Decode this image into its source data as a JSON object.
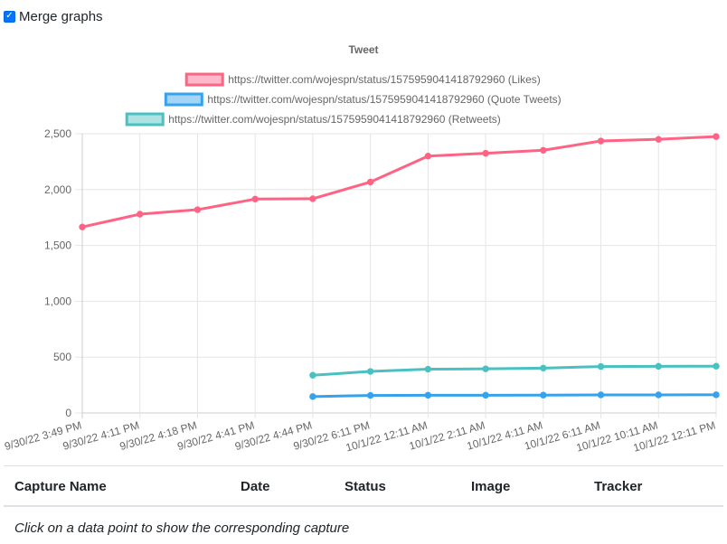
{
  "merge": {
    "label": "Merge graphs",
    "checked": true
  },
  "colors": {
    "likes": "#ff6384",
    "quote": "#36a2eb",
    "retweets": "#4bc0c0"
  },
  "table": {
    "headers": [
      "Capture Name",
      "Date",
      "Status",
      "Image",
      "Tracker"
    ],
    "hint": "Click on a data point to show the corresponding capture"
  },
  "chart_data": {
    "type": "line",
    "title": "Tweet",
    "xlabel": "",
    "ylabel": "",
    "ylim": [
      0,
      2500
    ],
    "yticks": [
      0,
      500,
      1000,
      1500,
      2000,
      2500
    ],
    "grid": true,
    "legend": "top",
    "categories": [
      "9/30/22 3:49 PM",
      "9/30/22 4:11 PM",
      "9/30/22 4:18 PM",
      "9/30/22 4:41 PM",
      "9/30/22 4:44 PM",
      "9/30/22 6:11 PM",
      "10/1/22 12:11 AM",
      "10/1/22 2:11 AM",
      "10/1/22 4:11 AM",
      "10/1/22 6:11 AM",
      "10/1/22 10:11 AM",
      "10/1/22 12:11 PM"
    ],
    "series": [
      {
        "name": "https://twitter.com/wojespn/status/1575959041418792960 (Likes)",
        "color": "#ff6384",
        "values": [
          1665,
          1780,
          1820,
          1915,
          1918,
          2068,
          2300,
          2325,
          2352,
          2435,
          2450,
          2475
        ]
      },
      {
        "name": "https://twitter.com/wojespn/status/1575959041418792960 (Quote Tweets)",
        "color": "#36a2eb",
        "values": [
          null,
          null,
          null,
          null,
          147,
          157,
          159,
          159,
          160,
          162,
          162,
          163
        ]
      },
      {
        "name": "https://twitter.com/wojespn/status/1575959041418792960 (Retweets)",
        "color": "#4bc0c0",
        "values": [
          null,
          null,
          null,
          null,
          338,
          372,
          392,
          395,
          402,
          416,
          418,
          419
        ]
      }
    ]
  }
}
